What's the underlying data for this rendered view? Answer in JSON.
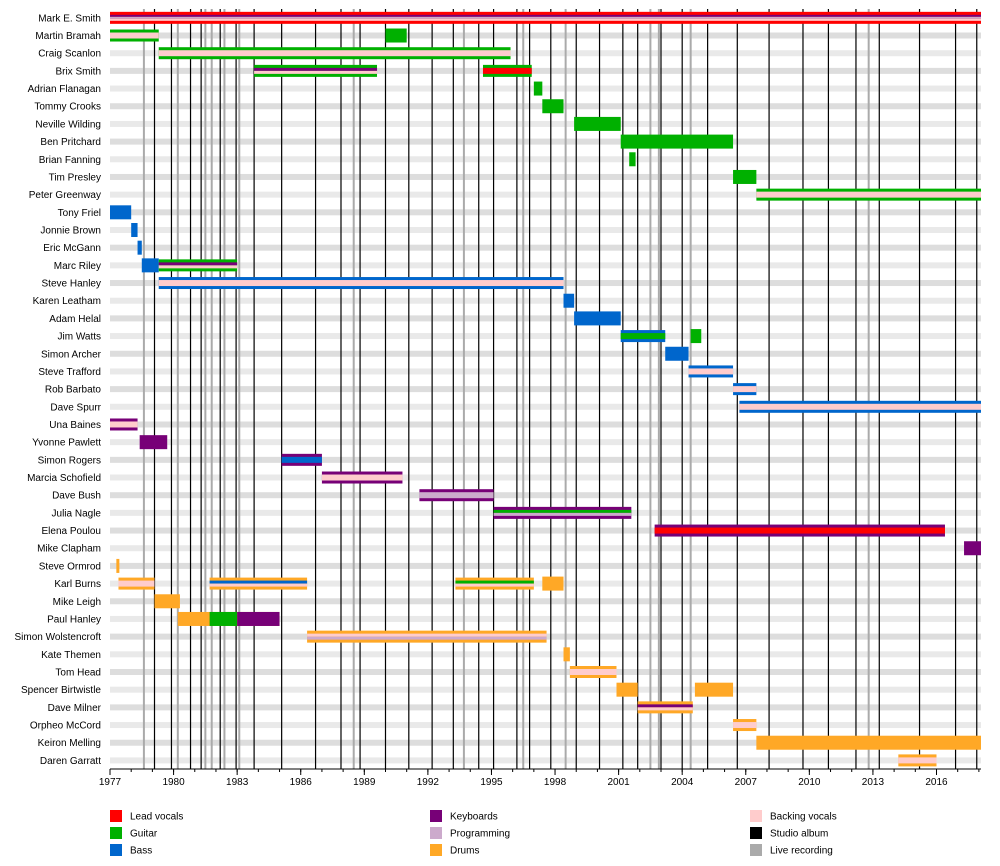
{
  "chart_data": {
    "type": "timeline",
    "title": "",
    "x_range": [
      1977.0,
      2018.1
    ],
    "tick_years": [
      "1977",
      "1980",
      "1983",
      "1986",
      "1989",
      "1992",
      "1995",
      "1998",
      "2001",
      "2004",
      "2007",
      "2010",
      "2013",
      "2016"
    ],
    "colors": {
      "lead_vocals": "#ff0000",
      "guitar": "#00b000",
      "bass": "#0066cc",
      "keyboards": "#770077",
      "programming": "#ccaacc",
      "drums": "#ffa826",
      "backing_vocals": "#ffcccc",
      "studio_album": "#000000",
      "live_recording": "#aaaaaa",
      "stripe_light": "#e9e9e9",
      "stripe_dark": "#dddddd"
    },
    "legend": [
      {
        "label": "Lead vocals",
        "color": "#ff0000"
      },
      {
        "label": "Guitar",
        "color": "#00b000"
      },
      {
        "label": "Bass",
        "color": "#0066cc"
      },
      {
        "label": "Keyboards",
        "color": "#770077"
      },
      {
        "label": "Programming",
        "color": "#ccaacc"
      },
      {
        "label": "Drums",
        "color": "#ffa826"
      },
      {
        "label": "Backing vocals",
        "color": "#ffcccc"
      },
      {
        "label": "Studio album",
        "color": "#000000"
      },
      {
        "label": "Live recording",
        "color": "#aaaaaa"
      }
    ],
    "studio_albums": [
      1979.1,
      1979.9,
      1980.8,
      1981.3,
      1982.2,
      1982.95,
      1983.8,
      1985.1,
      1986.7,
      1987.9,
      1988.8,
      1990.0,
      1991.1,
      1992.2,
      1993.2,
      1994.4,
      1995.1,
      1996.2,
      1996.8,
      1997.8,
      1999.0,
      2000.1,
      2001.2,
      2001.9,
      2003.0,
      2004.0,
      2005.2,
      2006.6,
      2008.1,
      2009.7,
      2010.9,
      2012.2,
      2013.3,
      2015.2,
      2016.9,
      2017.9
    ],
    "live_recordings": [
      1978.6,
      1980.2,
      1981.5,
      1981.8,
      1982.4,
      1983.1,
      1988.5,
      1993.7,
      1996.5,
      1998.5,
      2002.5,
      2002.9,
      2004.4,
      2012.8
    ],
    "members": [
      {
        "name": "Mark E. Smith",
        "bars": [
          {
            "s": 1977.0,
            "e": 2018.1,
            "c": [
              "lead_vocals",
              "keyboards",
              "programming",
              "backing_vocals"
            ]
          }
        ]
      },
      {
        "name": "Martin Bramah",
        "bars": [
          {
            "s": 1977.0,
            "e": 1979.3,
            "c": [
              "guitar",
              "backing_vocals"
            ]
          },
          {
            "s": 1990.0,
            "e": 1991.0,
            "c": [
              "guitar"
            ]
          }
        ]
      },
      {
        "name": "Craig Scanlon",
        "bars": [
          {
            "s": 1979.3,
            "e": 1995.9,
            "c": [
              "guitar",
              "backing_vocals"
            ]
          }
        ]
      },
      {
        "name": "Brix Smith",
        "bars": [
          {
            "s": 1983.8,
            "e": 1989.6,
            "c": [
              "guitar",
              "keyboards",
              "backing_vocals"
            ]
          },
          {
            "s": 1994.6,
            "e": 1996.9,
            "c": [
              "guitar",
              "lead_vocals"
            ]
          }
        ]
      },
      {
        "name": "Adrian Flanagan",
        "bars": [
          {
            "s": 1997.0,
            "e": 1997.4,
            "c": [
              "guitar"
            ]
          }
        ]
      },
      {
        "name": "Tommy Crooks",
        "bars": [
          {
            "s": 1997.4,
            "e": 1998.4,
            "c": [
              "guitar"
            ]
          }
        ]
      },
      {
        "name": "Neville Wilding",
        "bars": [
          {
            "s": 1998.9,
            "e": 2001.1,
            "c": [
              "guitar"
            ]
          }
        ]
      },
      {
        "name": "Ben Pritchard",
        "bars": [
          {
            "s": 2001.1,
            "e": 2006.4,
            "c": [
              "guitar"
            ]
          }
        ]
      },
      {
        "name": "Brian Fanning",
        "bars": [
          {
            "s": 2001.5,
            "e": 2001.8,
            "c": [
              "guitar"
            ]
          }
        ]
      },
      {
        "name": "Tim Presley",
        "bars": [
          {
            "s": 2006.4,
            "e": 2007.5,
            "c": [
              "guitar"
            ]
          }
        ]
      },
      {
        "name": "Peter Greenway",
        "bars": [
          {
            "s": 2007.5,
            "e": 2018.1,
            "c": [
              "guitar",
              "backing_vocals"
            ]
          }
        ]
      },
      {
        "name": "Tony Friel",
        "bars": [
          {
            "s": 1977.0,
            "e": 1978.0,
            "c": [
              "bass"
            ]
          }
        ]
      },
      {
        "name": "Jonnie Brown",
        "bars": [
          {
            "s": 1978.0,
            "e": 1978.3,
            "c": [
              "bass"
            ]
          }
        ]
      },
      {
        "name": "Eric McGann",
        "bars": [
          {
            "s": 1978.3,
            "e": 1978.5,
            "c": [
              "bass"
            ]
          }
        ]
      },
      {
        "name": "Marc Riley",
        "bars": [
          {
            "s": 1978.5,
            "e": 1979.3,
            "c": [
              "bass"
            ]
          },
          {
            "s": 1979.3,
            "e": 1983.0,
            "c": [
              "guitar",
              "keyboards",
              "backing_vocals"
            ]
          }
        ]
      },
      {
        "name": "Steve Hanley",
        "bars": [
          {
            "s": 1979.3,
            "e": 1998.4,
            "c": [
              "bass",
              "backing_vocals"
            ]
          }
        ]
      },
      {
        "name": "Karen Leatham",
        "bars": [
          {
            "s": 1998.4,
            "e": 1998.9,
            "c": [
              "bass"
            ]
          }
        ]
      },
      {
        "name": "Adam Helal",
        "bars": [
          {
            "s": 1998.9,
            "e": 2001.1,
            "c": [
              "bass"
            ]
          }
        ]
      },
      {
        "name": "Jim Watts",
        "bars": [
          {
            "s": 2001.1,
            "e": 2003.2,
            "c": [
              "bass",
              "guitar"
            ]
          },
          {
            "s": 2004.4,
            "e": 2004.9,
            "c": [
              "guitar"
            ]
          }
        ]
      },
      {
        "name": "Simon Archer",
        "bars": [
          {
            "s": 2003.2,
            "e": 2004.3,
            "c": [
              "bass"
            ]
          }
        ]
      },
      {
        "name": "Steve Trafford",
        "bars": [
          {
            "s": 2004.3,
            "e": 2006.4,
            "c": [
              "bass",
              "backing_vocals"
            ]
          }
        ]
      },
      {
        "name": "Rob Barbato",
        "bars": [
          {
            "s": 2006.4,
            "e": 2007.5,
            "c": [
              "bass",
              "backing_vocals"
            ]
          }
        ]
      },
      {
        "name": "Dave Spurr",
        "bars": [
          {
            "s": 2006.7,
            "e": 2018.1,
            "c": [
              "bass",
              "backing_vocals"
            ]
          }
        ]
      },
      {
        "name": "Una Baines",
        "bars": [
          {
            "s": 1977.0,
            "e": 1978.3,
            "c": [
              "keyboards",
              "backing_vocals"
            ]
          }
        ]
      },
      {
        "name": "Yvonne Pawlett",
        "bars": [
          {
            "s": 1978.4,
            "e": 1979.7,
            "c": [
              "keyboards"
            ]
          }
        ]
      },
      {
        "name": "Simon Rogers",
        "bars": [
          {
            "s": 1985.1,
            "e": 1987.0,
            "c": [
              "keyboards",
              "bass"
            ]
          }
        ]
      },
      {
        "name": "Marcia Schofield",
        "bars": [
          {
            "s": 1987.0,
            "e": 1990.8,
            "c": [
              "keyboards",
              "backing_vocals"
            ]
          }
        ]
      },
      {
        "name": "Dave Bush",
        "bars": [
          {
            "s": 1991.6,
            "e": 1995.1,
            "c": [
              "keyboards",
              "programming"
            ]
          }
        ]
      },
      {
        "name": "Julia Nagle",
        "bars": [
          {
            "s": 1995.1,
            "e": 2001.6,
            "c": [
              "keyboards",
              "guitar",
              "programming"
            ]
          }
        ]
      },
      {
        "name": "Elena Poulou",
        "bars": [
          {
            "s": 2002.7,
            "e": 2016.4,
            "c": [
              "keyboards",
              "lead_vocals"
            ]
          }
        ]
      },
      {
        "name": "Mike Clapham",
        "bars": [
          {
            "s": 2017.3,
            "e": 2018.1,
            "c": [
              "keyboards"
            ]
          }
        ]
      },
      {
        "name": "Steve Ormrod",
        "bars": [
          {
            "s": 1977.3,
            "e": 1977.4,
            "c": [
              "drums"
            ]
          }
        ]
      },
      {
        "name": "Karl Burns",
        "bars": [
          {
            "s": 1977.4,
            "e": 1979.1,
            "c": [
              "drums",
              "backing_vocals"
            ]
          },
          {
            "s": 1981.7,
            "e": 1986.3,
            "c": [
              "drums",
              "bass",
              "backing_vocals"
            ]
          },
          {
            "s": 1993.3,
            "e": 1997.0,
            "c": [
              "drums",
              "guitar",
              "backing_vocals"
            ]
          },
          {
            "s": 1997.4,
            "e": 1998.4,
            "c": [
              "drums"
            ]
          }
        ]
      },
      {
        "name": "Mike Leigh",
        "bars": [
          {
            "s": 1979.1,
            "e": 1980.3,
            "c": [
              "drums"
            ]
          }
        ]
      },
      {
        "name": "Paul Hanley",
        "bars": [
          {
            "s": 1980.2,
            "e": 1985.0,
            "c": [
              "drums"
            ]
          },
          {
            "s": 1981.7,
            "e": 1983.0,
            "c": [
              "guitar"
            ]
          },
          {
            "s": 1983.0,
            "e": 1985.0,
            "c": [
              "keyboards"
            ]
          }
        ]
      },
      {
        "name": "Simon Wolstencroft",
        "bars": [
          {
            "s": 1986.3,
            "e": 1997.6,
            "c": [
              "drums",
              "backing_vocals",
              "programming"
            ]
          }
        ]
      },
      {
        "name": "Kate Themen",
        "bars": [
          {
            "s": 1998.4,
            "e": 1998.7,
            "c": [
              "drums"
            ]
          }
        ]
      },
      {
        "name": "Tom Head",
        "bars": [
          {
            "s": 1998.7,
            "e": 2000.9,
            "c": [
              "drums",
              "backing_vocals"
            ]
          }
        ]
      },
      {
        "name": "Spencer Birtwistle",
        "bars": [
          {
            "s": 2000.9,
            "e": 2001.9,
            "c": [
              "drums"
            ]
          },
          {
            "s": 2004.6,
            "e": 2006.4,
            "c": [
              "drums"
            ]
          }
        ]
      },
      {
        "name": "Dave Milner",
        "bars": [
          {
            "s": 2001.9,
            "e": 2004.5,
            "c": [
              "drums",
              "keyboards",
              "backing_vocals"
            ]
          }
        ]
      },
      {
        "name": "Orpheo McCord",
        "bars": [
          {
            "s": 2006.4,
            "e": 2007.5,
            "c": [
              "drums",
              "backing_vocals"
            ]
          }
        ]
      },
      {
        "name": "Keiron Melling",
        "bars": [
          {
            "s": 2007.5,
            "e": 2018.1,
            "c": [
              "drums"
            ]
          }
        ]
      },
      {
        "name": "Daren Garratt",
        "bars": [
          {
            "s": 2014.2,
            "e": 2016.0,
            "c": [
              "drums",
              "backing_vocals"
            ]
          }
        ]
      }
    ]
  }
}
